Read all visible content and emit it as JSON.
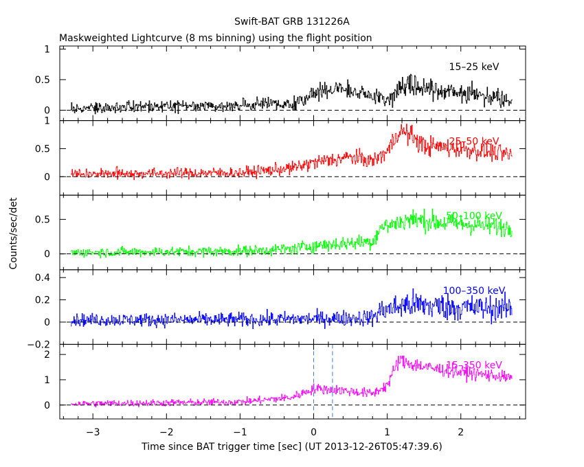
{
  "chart_data": {
    "type": "line",
    "title": "Swift-BAT GRB 131226A",
    "subtitle": "Maskweighted Lightcurve (8 ms binning) using the flight position",
    "xlabel": "Time since BAT trigger time [sec] (UT 2013-12-26T05:47:39.6)",
    "ylabel": "Counts/sec/det",
    "xlim": [
      -3.45,
      2.88
    ],
    "x_ticks": [
      -3,
      -2,
      -1,
      0,
      1,
      2
    ],
    "x_tick_labels": [
      "−3",
      "−2",
      "−1",
      "0",
      "1",
      "2"
    ],
    "data_range": [
      -3.3,
      2.7
    ],
    "bin_width_s": 0.008,
    "vlines": [
      0.0,
      0.256
    ],
    "panels": [
      {
        "name": "15–25 keV",
        "color": "#000000",
        "ylim": [
          -0.17,
          1.05
        ],
        "y_ticks": [
          0,
          0.5,
          1
        ],
        "y_tick_labels": [
          "0",
          "0.5",
          "1"
        ],
        "envelope": {
          "t": [
            -3.3,
            -0.3,
            0.0,
            0.35,
            0.8,
            1.0,
            1.15,
            1.3,
            1.5,
            2.0,
            2.5,
            2.7
          ],
          "mean": [
            0.03,
            0.1,
            0.28,
            0.35,
            0.22,
            0.18,
            0.33,
            0.48,
            0.36,
            0.28,
            0.22,
            0.18
          ],
          "noise": [
            0.08,
            0.09,
            0.12,
            0.13,
            0.14,
            0.15,
            0.16,
            0.2,
            0.17,
            0.15,
            0.14,
            0.13
          ]
        }
      },
      {
        "name": "25–50 keV",
        "color": "#ff0000",
        "ylim": [
          -0.33,
          1.0
        ],
        "y_ticks": [
          0,
          0.5,
          1
        ],
        "y_tick_labels": [
          "0",
          "0.5",
          "1"
        ],
        "envelope": {
          "t": [
            -3.3,
            -1.0,
            -0.3,
            0.0,
            0.5,
            0.8,
            1.0,
            1.15,
            1.3,
            1.5,
            2.0,
            2.5,
            2.7
          ],
          "mean": [
            0.05,
            0.07,
            0.15,
            0.25,
            0.35,
            0.28,
            0.45,
            0.82,
            0.75,
            0.55,
            0.5,
            0.42,
            0.38
          ],
          "noise": [
            0.08,
            0.09,
            0.1,
            0.12,
            0.13,
            0.12,
            0.14,
            0.17,
            0.17,
            0.16,
            0.15,
            0.14,
            0.14
          ]
        }
      },
      {
        "name": "50–100 keV",
        "color": "#00ff00",
        "ylim": [
          -0.23,
          0.85
        ],
        "y_ticks": [
          0,
          0.5
        ],
        "y_tick_labels": [
          "0",
          "0.5"
        ],
        "envelope": {
          "t": [
            -3.3,
            -1.0,
            -0.3,
            0.0,
            0.8,
            0.9,
            1.3,
            1.8,
            2.2,
            2.7
          ],
          "mean": [
            0.02,
            0.04,
            0.07,
            0.12,
            0.18,
            0.38,
            0.5,
            0.45,
            0.42,
            0.38
          ],
          "noise": [
            0.06,
            0.07,
            0.08,
            0.09,
            0.1,
            0.12,
            0.14,
            0.14,
            0.13,
            0.12
          ]
        }
      },
      {
        "name": "100–350 keV",
        "color": "#0000ff",
        "ylim": [
          -0.2,
          0.47
        ],
        "y_ticks": [
          -0.2,
          0,
          0.2,
          0.4
        ],
        "y_tick_labels": [
          "−0.2",
          "0",
          "0.2",
          "0.4"
        ],
        "envelope": {
          "t": [
            -3.3,
            -1.0,
            0.0,
            0.8,
            0.9,
            1.3,
            2.0,
            2.7
          ],
          "mean": [
            0.02,
            0.02,
            0.03,
            0.04,
            0.1,
            0.16,
            0.13,
            0.12
          ],
          "noise": [
            0.05,
            0.06,
            0.06,
            0.07,
            0.09,
            0.12,
            0.11,
            0.1
          ]
        }
      },
      {
        "name": "15–350 keV",
        "color": "#ff00ff",
        "ylim": [
          -0.55,
          2.4
        ],
        "y_ticks": [
          0,
          1,
          2
        ],
        "y_tick_labels": [
          "0",
          "1",
          "2"
        ],
        "envelope": {
          "t": [
            -3.3,
            -1.0,
            -0.3,
            0.0,
            0.3,
            0.8,
            1.0,
            1.15,
            1.3,
            1.6,
            2.0,
            2.5,
            2.7
          ],
          "mean": [
            0.05,
            0.12,
            0.3,
            0.65,
            0.6,
            0.45,
            0.8,
            1.75,
            1.65,
            1.45,
            1.3,
            1.15,
            1.05
          ],
          "noise": [
            0.12,
            0.13,
            0.15,
            0.18,
            0.18,
            0.17,
            0.22,
            0.28,
            0.28,
            0.25,
            0.24,
            0.22,
            0.2
          ]
        }
      }
    ]
  }
}
